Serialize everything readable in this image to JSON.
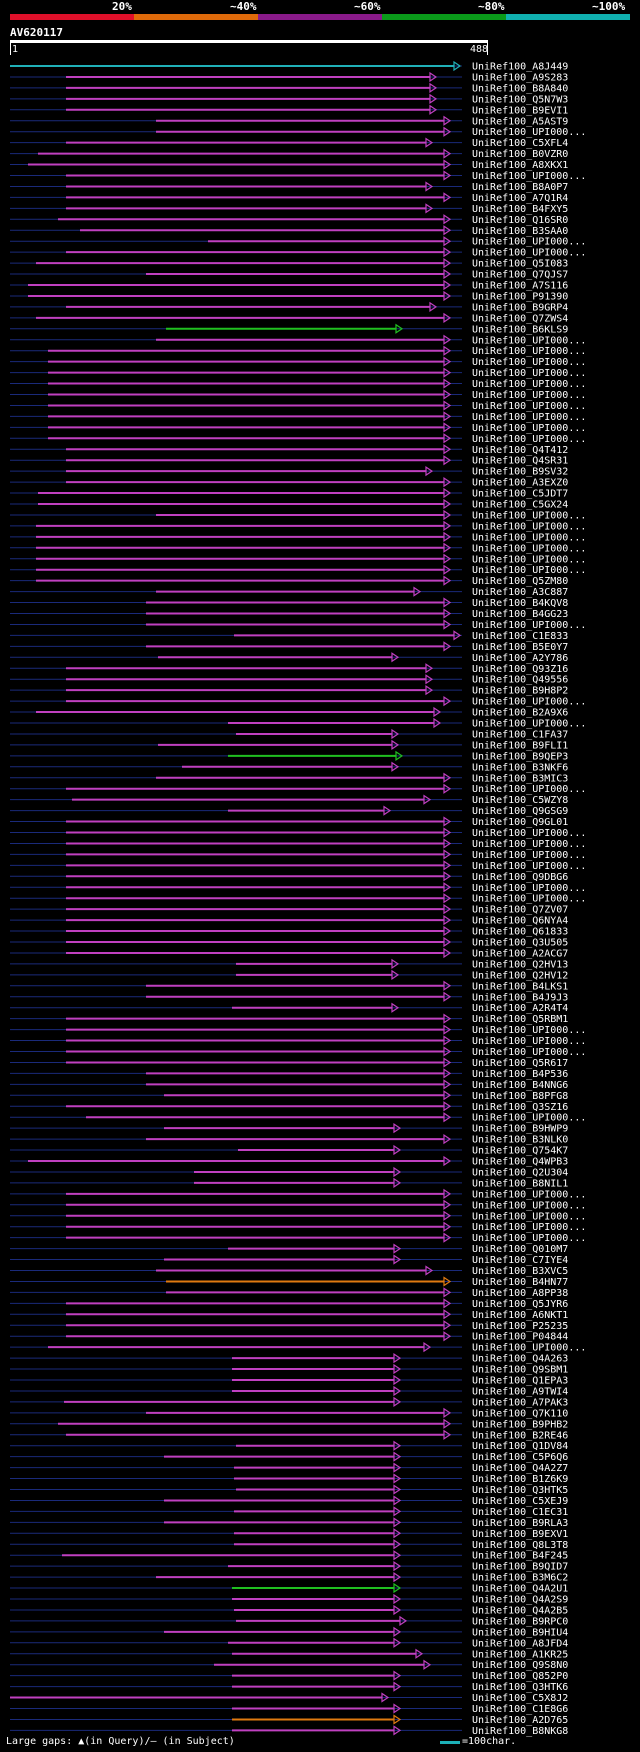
{
  "header": {
    "percent_labels": [
      "20%",
      "~40%",
      "~60%",
      "~80%",
      "~100%"
    ],
    "bar_colors": [
      "#e0102a",
      "#e06a0a",
      "#8a1a8a",
      "#0a9a1a",
      "#10b0b0"
    ],
    "query_name": "AV620117",
    "query_start": "1",
    "query_end": "488"
  },
  "legend": {
    "gaps_label": "Large gaps: ▲(in Query)/– (in Subject)",
    "scale_label": "=100char."
  },
  "colors": {
    "magenta": "#c040c0",
    "green": "#20c020",
    "orange": "#e07a10",
    "cyan": "#20b0b8",
    "navy": "#1a2a7a"
  },
  "hits": [
    "UniRef100_A8J449",
    "UniRef100_A9S283",
    "UniRef100_B8A840",
    "UniRef100_Q5N7W3",
    "UniRef100_B9EVI1",
    "UniRef100_A5AST9",
    "UniRef100_UPI000...",
    "UniRef100_C5XFL4",
    "UniRef100_B0VZR0",
    "UniRef100_A8XKX1",
    "UniRef100_UPI000...",
    "UniRef100_B8A0P7",
    "UniRef100_A7Q1R4",
    "UniRef100_B4FXY5",
    "UniRef100_Q16SR0",
    "UniRef100_B3SAA0",
    "UniRef100_UPI000...",
    "UniRef100_UPI000...",
    "UniRef100_Q5I083",
    "UniRef100_Q7QJS7",
    "UniRef100_A7S116",
    "UniRef100_P91390",
    "UniRef100_B9GRP4",
    "UniRef100_Q7ZWS4",
    "UniRef100_B6KLS9",
    "UniRef100_UPI000...",
    "UniRef100_UPI000...",
    "UniRef100_UPI000...",
    "UniRef100_UPI000...",
    "UniRef100_UPI000...",
    "UniRef100_UPI000...",
    "UniRef100_UPI000...",
    "UniRef100_UPI000...",
    "UniRef100_UPI000...",
    "UniRef100_UPI000...",
    "UniRef100_Q4T412",
    "UniRef100_Q4SR31",
    "UniRef100_B9SV32",
    "UniRef100_A3EXZ0",
    "UniRef100_C5JDT7",
    "UniRef100_C5GX24",
    "UniRef100_UPI000...",
    "UniRef100_UPI000...",
    "UniRef100_UPI000...",
    "UniRef100_UPI000...",
    "UniRef100_UPI000...",
    "UniRef100_UPI000...",
    "UniRef100_Q5ZM80",
    "UniRef100_A3C887",
    "UniRef100_B4KQV8",
    "UniRef100_B4GG23",
    "UniRef100_UPI000...",
    "UniRef100_C1E833",
    "UniRef100_B5E0Y7",
    "UniRef100_A2Y786",
    "UniRef100_Q93Z16",
    "UniRef100_Q49556",
    "UniRef100_B9H8P2",
    "UniRef100_UPI000...",
    "UniRef100_B2A9X6",
    "UniRef100_UPI000...",
    "UniRef100_C1FA37",
    "UniRef100_B9FLI1",
    "UniRef100_B9QEP3",
    "UniRef100_B3NKF6",
    "UniRef100_B3MIC3",
    "UniRef100_UPI000...",
    "UniRef100_C5WZY8",
    "UniRef100_Q9GSG9",
    "UniRef100_Q9GL01",
    "UniRef100_UPI000...",
    "UniRef100_UPI000...",
    "UniRef100_UPI000...",
    "UniRef100_UPI000...",
    "UniRef100_Q9DBG6",
    "UniRef100_UPI000...",
    "UniRef100_UPI000...",
    "UniRef100_Q7ZV07",
    "UniRef100_Q6NYA4",
    "UniRef100_Q61833",
    "UniRef100_Q3U505",
    "UniRef100_A2ACG7",
    "UniRef100_Q2HV13",
    "UniRef100_Q2HV12",
    "UniRef100_B4LKS1",
    "UniRef100_B4J9J3",
    "UniRef100_A2R4T4",
    "UniRef100_Q5RBM1",
    "UniRef100_UPI000...",
    "UniRef100_UPI000...",
    "UniRef100_UPI000...",
    "UniRef100_Q5R617",
    "UniRef100_B4P536",
    "UniRef100_B4NNG6",
    "UniRef100_B8PFG8",
    "UniRef100_Q3SZ16",
    "UniRef100_UPI000...",
    "UniRef100_B9HWP9",
    "UniRef100_B3NLK0",
    "UniRef100_Q754K7",
    "UniRef100_Q4WPB3",
    "UniRef100_Q2U304",
    "UniRef100_B8NIL1",
    "UniRef100_UPI000...",
    "UniRef100_UPI000...",
    "UniRef100_UPI000...",
    "UniRef100_UPI000...",
    "UniRef100_UPI000...",
    "UniRef100_Q010M7",
    "UniRef100_C7IYE4",
    "UniRef100_B3XVC5",
    "UniRef100_B4HN77",
    "UniRef100_A8PP38",
    "UniRef100_Q5JYR6",
    "UniRef100_A6NKT1",
    "UniRef100_P25235",
    "UniRef100_P04844",
    "UniRef100_UPI000...",
    "UniRef100_Q4A263",
    "UniRef100_Q9SBM1",
    "UniRef100_Q1EPA3",
    "UniRef100_A9TWI4",
    "UniRef100_A7PAK3",
    "UniRef100_Q7K110",
    "UniRef100_B9PHB2",
    "UniRef100_B2RE46",
    "UniRef100_Q1DV84",
    "UniRef100_C5P6Q6",
    "UniRef100_Q4A2Z7",
    "UniRef100_B1Z6K9",
    "UniRef100_Q3HTK5",
    "UniRef100_C5XEJ9",
    "UniRef100_C1EC31",
    "UniRef100_B9RLA3",
    "UniRef100_B9EXV1",
    "UniRef100_Q8L3T8",
    "UniRef100_B4F245",
    "UniRef100_B9QID7",
    "UniRef100_B3M6C2",
    "UniRef100_Q4A2U1",
    "UniRef100_Q4A2S9",
    "UniRef100_Q4A2B5",
    "UniRef100_B9RPC0",
    "UniRef100_B9HIU4",
    "UniRef100_A8JFD4",
    "UniRef100_A1KR25",
    "UniRef100_Q9S8N0",
    "UniRef100_Q852P0",
    "UniRef100_Q3HTK6",
    "UniRef100_C5X8J2",
    "UniRef100_C1E8G6",
    "UniRef100_A2D765",
    "UniRef100_B8NKG8"
  ]
}
